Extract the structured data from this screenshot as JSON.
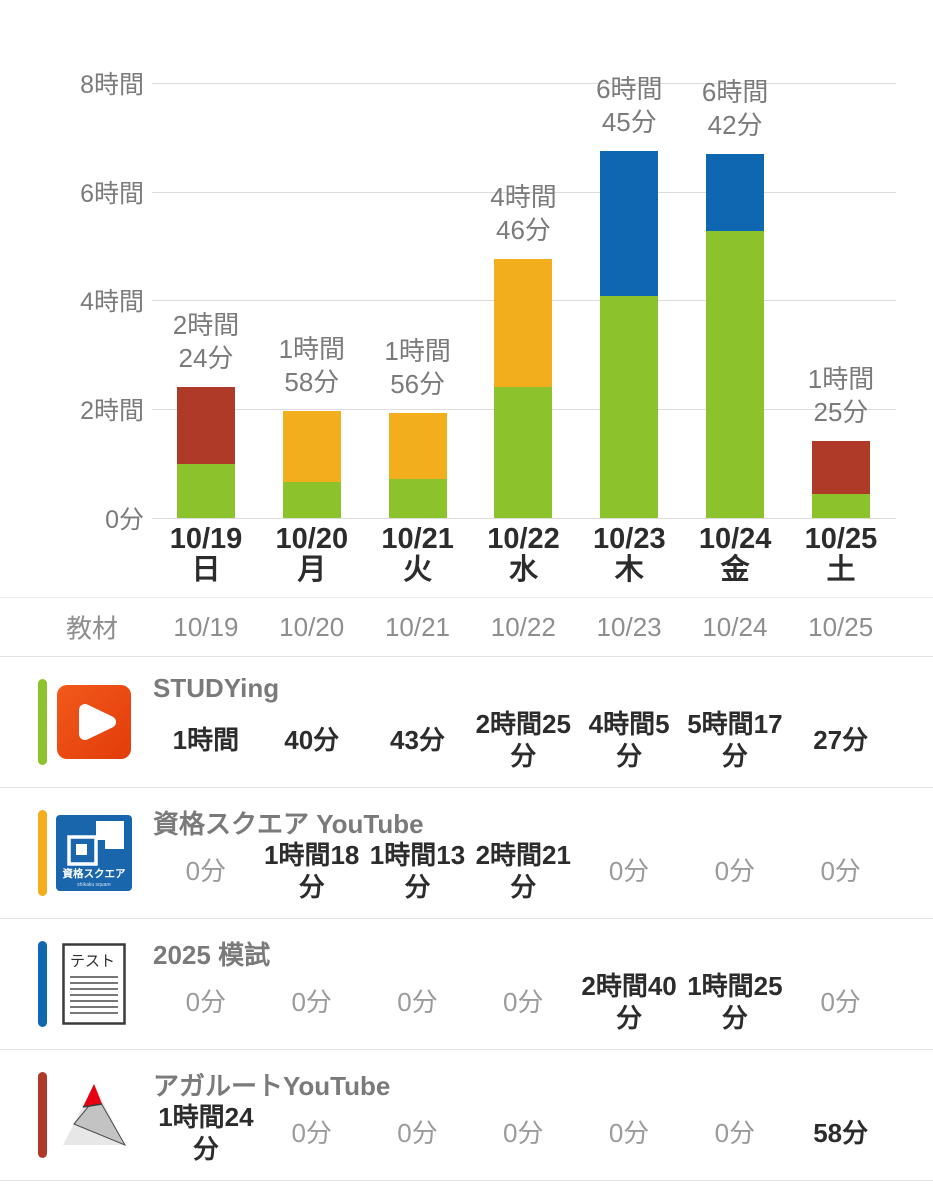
{
  "chart_data": {
    "type": "bar",
    "stacked": true,
    "title": "",
    "xlabel": "",
    "ylabel": "",
    "grid": true,
    "legend_position": "none",
    "y_max_hours": 8,
    "y_ticks": [
      {
        "hours": 0,
        "label": "0分"
      },
      {
        "hours": 2,
        "label": "2時間"
      },
      {
        "hours": 4,
        "label": "4時間"
      },
      {
        "hours": 6,
        "label": "6時間"
      },
      {
        "hours": 8,
        "label": "8時間"
      }
    ],
    "categories": [
      "10/19",
      "10/20",
      "10/21",
      "10/22",
      "10/23",
      "10/24",
      "10/25"
    ],
    "weekdays": [
      "日",
      "月",
      "火",
      "水",
      "木",
      "金",
      "土"
    ],
    "series": [
      {
        "name": "STUDYing",
        "color": "#8CC32D",
        "minutes": [
          60,
          40,
          43,
          145,
          245,
          317,
          27
        ]
      },
      {
        "name": "資格スクエア YouTube",
        "color": "#F2AE1C",
        "minutes": [
          0,
          78,
          73,
          141,
          0,
          0,
          0
        ]
      },
      {
        "name": "2025 模試",
        "color": "#1067B1",
        "minutes": [
          0,
          0,
          0,
          0,
          160,
          85,
          0
        ]
      },
      {
        "name": "アガルートYouTube",
        "color": "#AE3A27",
        "minutes": [
          84,
          0,
          0,
          0,
          0,
          0,
          58
        ]
      }
    ],
    "bar_total_labels": [
      "2時間\n24分",
      "1時間\n58分",
      "1時間\n56分",
      "4時間\n46分",
      "6時間\n45分",
      "6時間\n42分",
      "1時間\n25分"
    ]
  },
  "table": {
    "header": {
      "materials_label": "教材",
      "dates": [
        "10/19",
        "10/20",
        "10/21",
        "10/22",
        "10/23",
        "10/24",
        "10/25"
      ]
    },
    "zero_value": "0分",
    "rows": [
      {
        "name": "STUDYing",
        "marker_color": "#8CC32D",
        "values": [
          "1時間",
          "40分",
          "43分",
          "2時間25分",
          "4時間5分",
          "5時間17分",
          "27分"
        ]
      },
      {
        "name": "資格スクエア YouTube",
        "marker_color": "#F2AE1C",
        "values": [
          "0分",
          "1時間18分",
          "1時間13分",
          "2時間21分",
          "0分",
          "0分",
          "0分"
        ]
      },
      {
        "name": "2025 模試",
        "marker_color": "#1067B1",
        "values": [
          "0分",
          "0分",
          "0分",
          "0分",
          "2時間40分",
          "1時間25分",
          "0分"
        ]
      },
      {
        "name": "アガルートYouTube",
        "marker_color": "#AE3A27",
        "values": [
          "1時間24分",
          "0分",
          "0分",
          "0分",
          "0分",
          "0分",
          "58分"
        ]
      }
    ]
  },
  "icon_texts": {
    "shikaku_main": "資格スクエア",
    "shikaku_sub": "shikaku square",
    "test_label": "テスト"
  },
  "colors": {
    "studying_icon_orange": "#EA4B11",
    "shikaku_icon_blue": "#1A66AC",
    "agaroot_red": "#E60012",
    "grid": "#DCDCDC",
    "border": "#E2E2E2"
  }
}
